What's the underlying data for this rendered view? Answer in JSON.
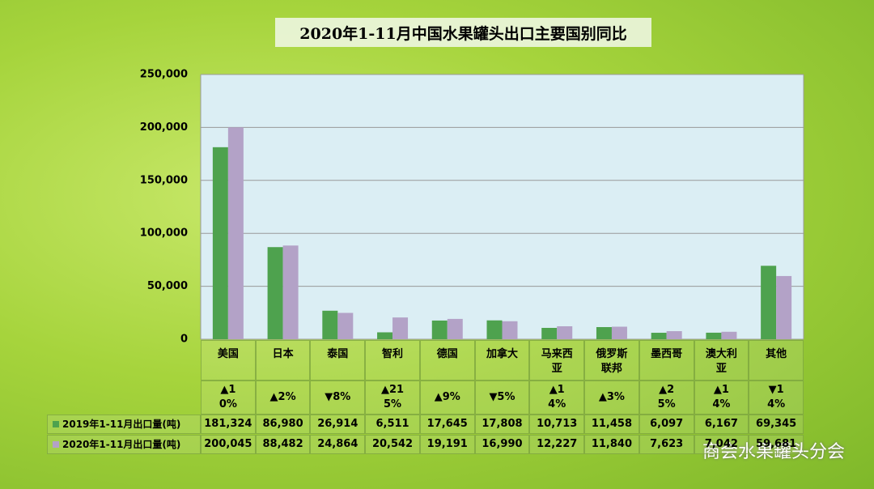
{
  "chart_data": {
    "type": "bar",
    "title": "2020年1-11月中国水果罐头出口主要国别同比",
    "categories": [
      "美国",
      "日本",
      "泰国",
      "智利",
      "德国",
      "加拿大",
      "马来西亚",
      "俄罗斯联邦",
      "墨西哥",
      "澳大利亚",
      "其他"
    ],
    "changes": [
      "▲10%",
      "▲2%",
      "▼8%",
      "▲215%",
      "▲9%",
      "▼5%",
      "▲14%",
      "▲3%",
      "▲25%",
      "▲14%",
      "▼14%"
    ],
    "series": [
      {
        "name": "2019年1-11月出口量(吨)",
        "color": "#4ea24e",
        "values": [
          181324,
          86980,
          26914,
          6511,
          17645,
          17808,
          10713,
          11458,
          6097,
          6167,
          69345
        ],
        "value_labels": [
          "181,324",
          "86,980",
          "26,914",
          "6,511",
          "17,645",
          "17,808",
          "10,713",
          "11,458",
          "6,097",
          "6,167",
          "69,345"
        ]
      },
      {
        "name": "2020年1-11月出口量(吨)",
        "color": "#b3a2c7",
        "values": [
          200045,
          88482,
          24864,
          20542,
          19191,
          16990,
          12227,
          11840,
          7623,
          7042,
          59681
        ],
        "value_labels": [
          "200,045",
          "88,482",
          "24,864",
          "20,542",
          "19,191",
          "16,990",
          "12,227",
          "11,840",
          "7,623",
          "7,042",
          "59,681"
        ]
      }
    ],
    "ylim": [
      0,
      250000
    ],
    "yticks": [
      0,
      {
        "value": 50000,
        "label": "50,000"
      },
      {
        "value": 100000,
        "label": "100,000"
      },
      {
        "value": 150000,
        "label": "150,000"
      },
      {
        "value": 200000,
        "label": "200,000"
      },
      {
        "value": 250000,
        "label": "250,000"
      }
    ],
    "grid": true,
    "watermark": "商会水果罐头分会"
  }
}
